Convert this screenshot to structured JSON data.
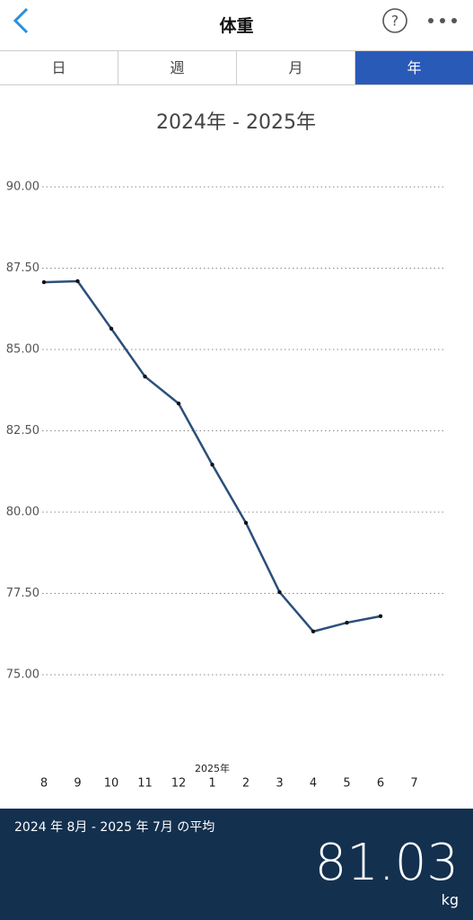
{
  "header": {
    "title": "体重"
  },
  "tabs": {
    "items": [
      "日",
      "週",
      "月",
      "年"
    ],
    "selected": 3
  },
  "chart_data": {
    "type": "line",
    "title": "2024年 - 2025年",
    "categories": [
      "8",
      "9",
      "10",
      "11",
      "12",
      "1",
      "2",
      "3",
      "4",
      "5",
      "6",
      "7",
      null
    ],
    "values": [
      87.07,
      87.1,
      85.64,
      84.17,
      83.34,
      81.46,
      79.67,
      77.54,
      76.33,
      76.6,
      76.8,
      null,
      null
    ],
    "annotation": "2025年",
    "color": "#2b4f7a",
    "ylim": [
      72.5,
      90
    ],
    "yticks": [
      {
        "value": 90,
        "label": "90.00"
      },
      {
        "value": 87.5,
        "label": "87.50"
      },
      {
        "value": 85,
        "label": "85.00"
      },
      {
        "value": 82.5,
        "label": "82.50"
      },
      {
        "value": 80,
        "label": "80.00"
      },
      {
        "value": 77.5,
        "label": "77.50"
      },
      {
        "value": 75,
        "label": "75.00"
      }
    ],
    "grid": true
  },
  "summary": {
    "label": "2024 年 8月 - 2025 年 7月 の平均",
    "value": "81.03",
    "unit": "kg"
  }
}
